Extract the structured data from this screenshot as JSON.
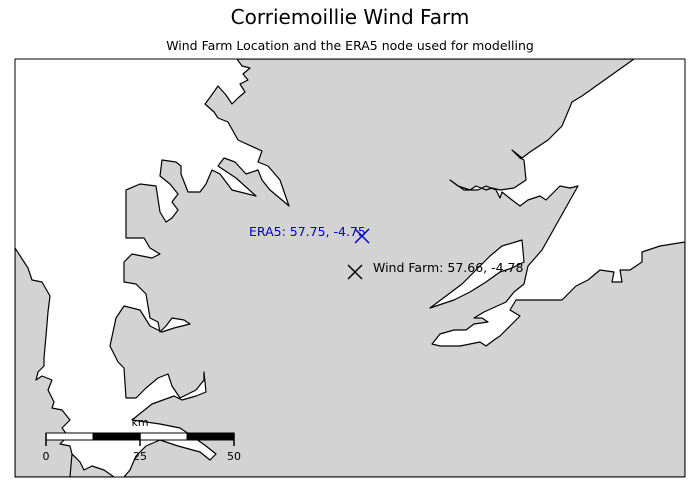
{
  "title": "Corriemoillie Wind Farm",
  "subtitle": "Wind Farm Location and the ERA5 node used for modelling",
  "colors": {
    "land": "#d3d3d3",
    "sea": "#ffffff",
    "coastline": "#000000",
    "era5_marker": "#0000cc",
    "farm_marker": "#000000"
  },
  "markers": {
    "era5": {
      "label": "ERA5: 57.75, -4.75",
      "lat": 57.75,
      "lon": -4.75,
      "symbol": "x"
    },
    "wind_farm": {
      "label": "Wind Farm: 57.66, -4.78",
      "lat": 57.66,
      "lon": -4.78,
      "symbol": "x"
    }
  },
  "scale_bar": {
    "unit": "km",
    "ticks": [
      "0",
      "25",
      "50"
    ]
  }
}
